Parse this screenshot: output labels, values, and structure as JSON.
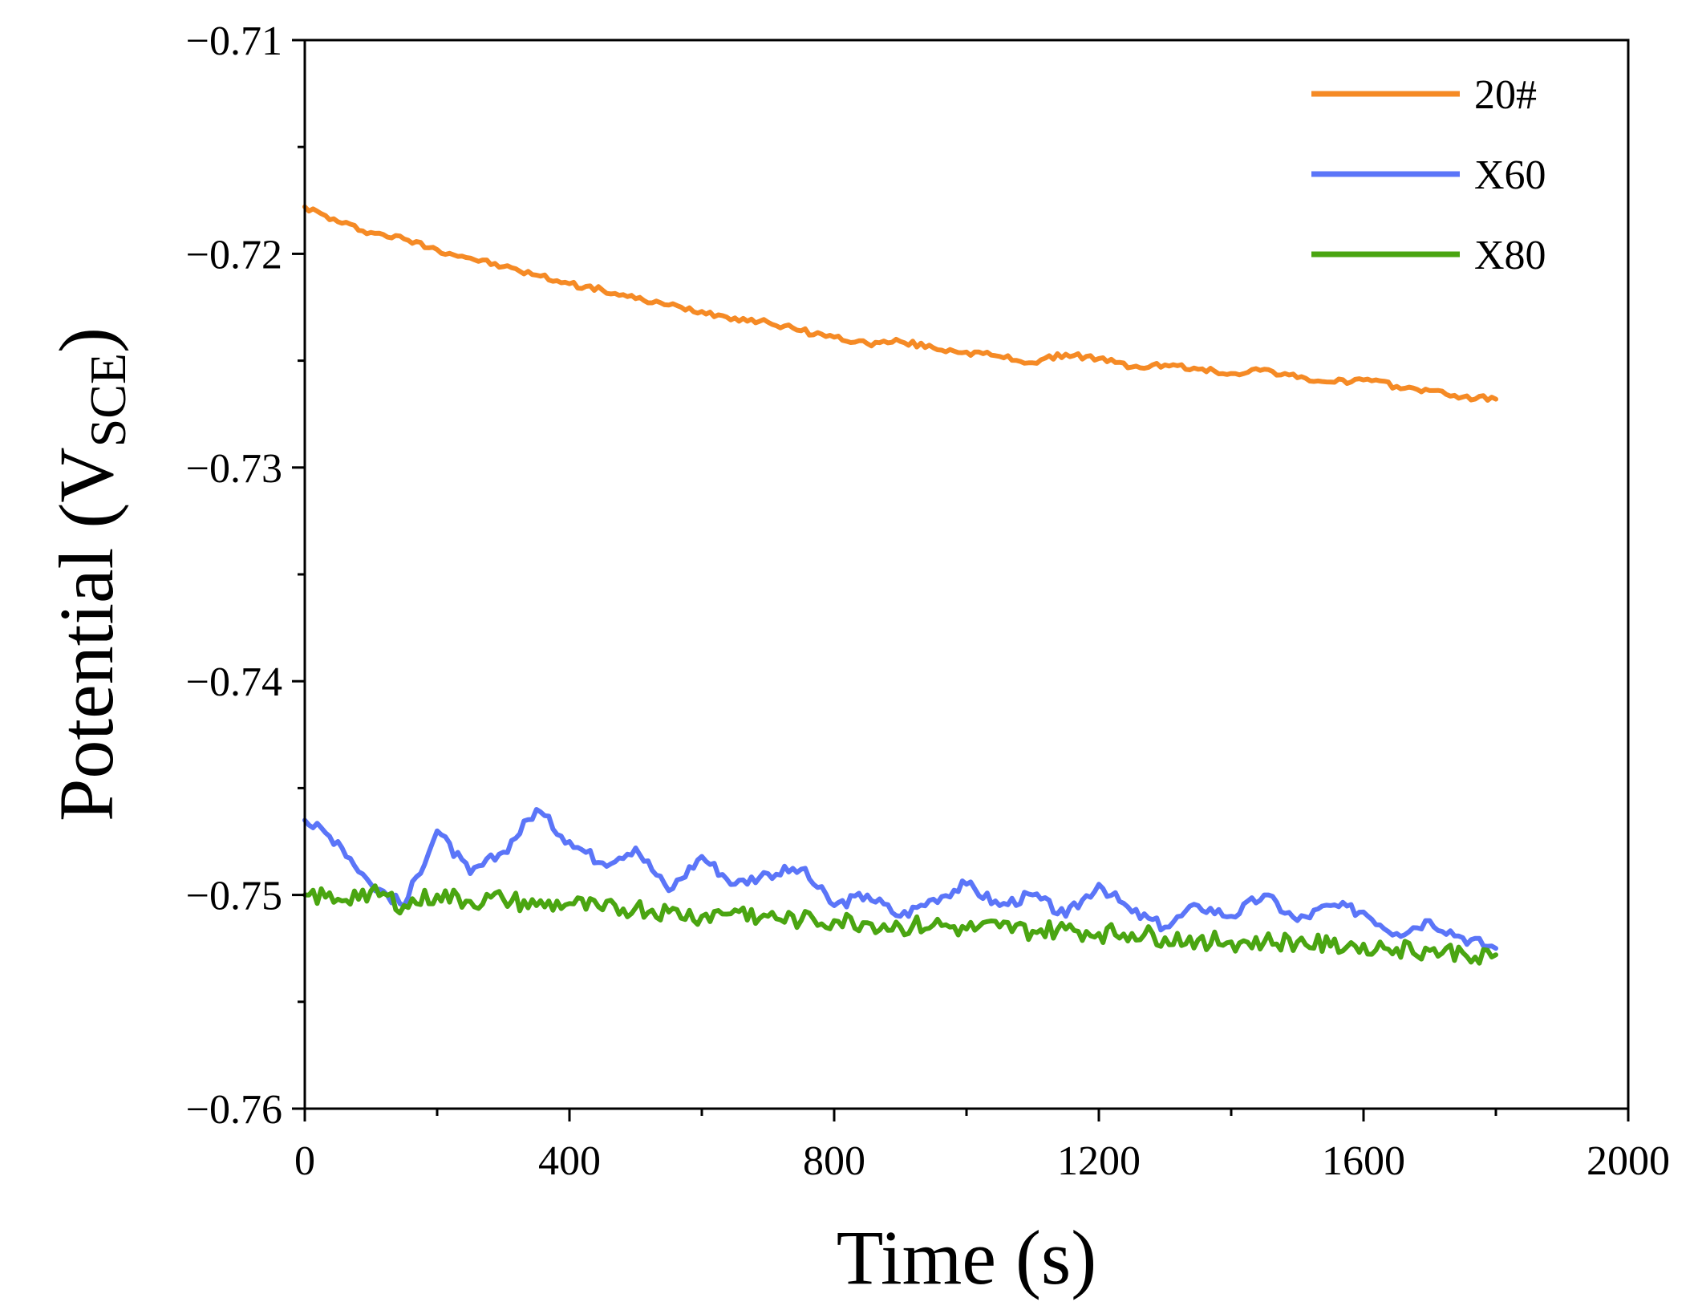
{
  "chart_data": {
    "type": "line",
    "title": "",
    "xlabel": "Time (s)",
    "ylabel": {
      "main": "Potential (V",
      "subscript": "SCE",
      "close": ")"
    },
    "xlim": [
      0,
      2000
    ],
    "ylim": [
      -0.76,
      -0.71
    ],
    "xticks": [
      0,
      400,
      800,
      1200,
      1600,
      2000
    ],
    "xtick_labels": [
      "0",
      "400",
      "800",
      "1200",
      "1600",
      "2000"
    ],
    "yticks": [
      -0.76,
      -0.75,
      -0.74,
      -0.73,
      -0.72,
      -0.71
    ],
    "ytick_labels": [
      "−0.76",
      "−0.75",
      "−0.74",
      "−0.73",
      "−0.72",
      "−0.71"
    ],
    "grid": false,
    "legend_position": "top-right",
    "x": [
      0,
      50,
      100,
      150,
      200,
      250,
      300,
      350,
      400,
      450,
      500,
      550,
      600,
      650,
      700,
      750,
      800,
      850,
      900,
      950,
      1000,
      1050,
      1100,
      1150,
      1200,
      1250,
      1300,
      1350,
      1400,
      1450,
      1500,
      1550,
      1600,
      1650,
      1700,
      1750,
      1800
    ],
    "series": [
      {
        "name": "20#",
        "color": "#f58a25",
        "values": [
          -0.7178,
          -0.7185,
          -0.719,
          -0.7193,
          -0.7198,
          -0.7202,
          -0.7206,
          -0.721,
          -0.7214,
          -0.7217,
          -0.7221,
          -0.7224,
          -0.7227,
          -0.723,
          -0.7232,
          -0.7236,
          -0.7239,
          -0.7242,
          -0.7241,
          -0.7244,
          -0.7246,
          -0.7248,
          -0.7251,
          -0.7247,
          -0.7249,
          -0.7253,
          -0.7252,
          -0.7254,
          -0.7256,
          -0.7254,
          -0.7258,
          -0.726,
          -0.7259,
          -0.7262,
          -0.7264,
          -0.7267,
          -0.7268
        ]
      },
      {
        "name": "X60",
        "color": "#5b75f8",
        "values": [
          -0.7465,
          -0.7475,
          -0.7495,
          -0.7505,
          -0.747,
          -0.749,
          -0.748,
          -0.746,
          -0.7475,
          -0.7485,
          -0.7478,
          -0.7498,
          -0.7482,
          -0.7495,
          -0.749,
          -0.7488,
          -0.7505,
          -0.75,
          -0.751,
          -0.7502,
          -0.7495,
          -0.7505,
          -0.75,
          -0.751,
          -0.7495,
          -0.7508,
          -0.7515,
          -0.7505,
          -0.751,
          -0.75,
          -0.7512,
          -0.7505,
          -0.7508,
          -0.7518,
          -0.7512,
          -0.752,
          -0.7525
        ]
      },
      {
        "name": "X80",
        "color": "#4aa511",
        "values": [
          -0.75,
          -0.7502,
          -0.7498,
          -0.7505,
          -0.75,
          -0.7503,
          -0.7502,
          -0.7505,
          -0.7504,
          -0.7507,
          -0.7506,
          -0.7508,
          -0.751,
          -0.7507,
          -0.751,
          -0.7512,
          -0.7512,
          -0.7513,
          -0.7515,
          -0.7514,
          -0.7516,
          -0.7515,
          -0.7517,
          -0.7516,
          -0.7518,
          -0.7518,
          -0.752,
          -0.7521,
          -0.7522,
          -0.7522,
          -0.7522,
          -0.7524,
          -0.7523,
          -0.7525,
          -0.7526,
          -0.7527,
          -0.7528
        ]
      }
    ]
  }
}
